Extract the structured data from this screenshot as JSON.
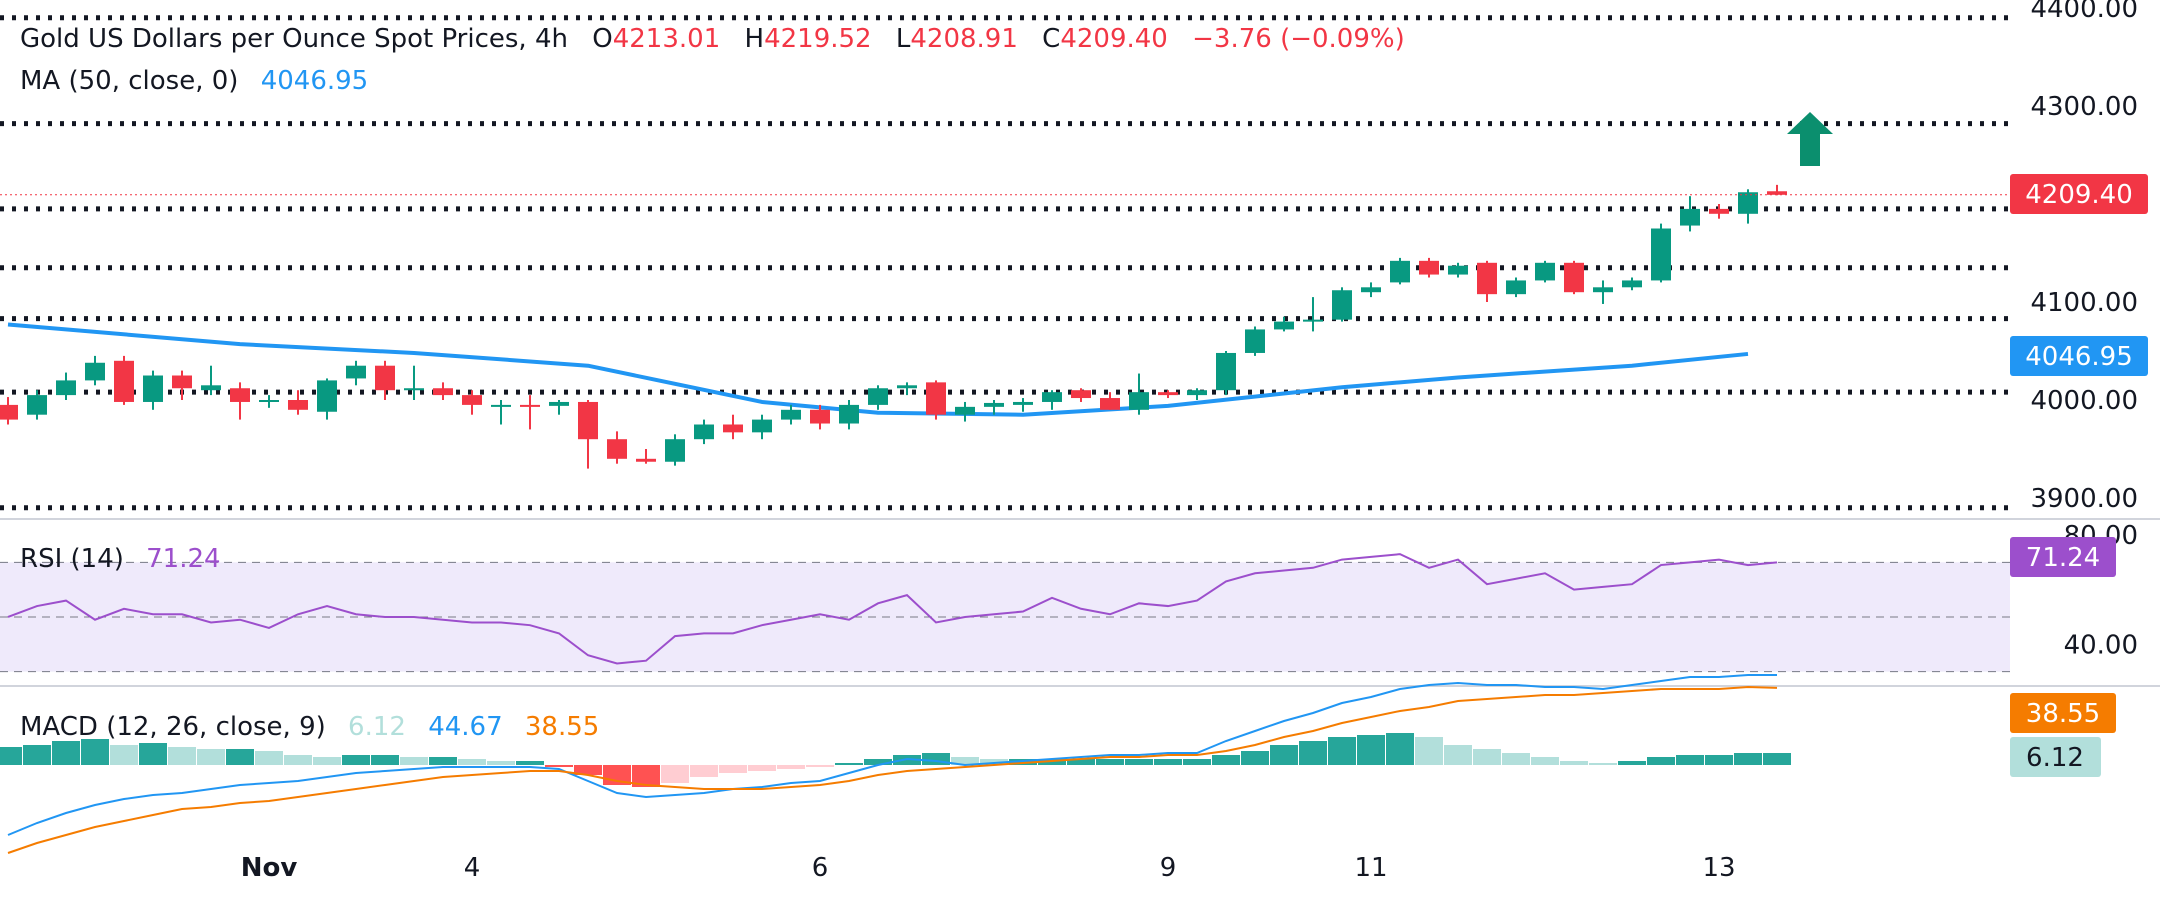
{
  "header": {
    "title": "Gold US Dollars per Ounce Spot Prices, 4h",
    "o_label": "O",
    "o_value": "4213.01",
    "h_label": "H",
    "h_value": "4219.52",
    "l_label": "L",
    "l_value": "4208.91",
    "c_label": "C",
    "c_value": "4209.40",
    "change": "−3.76 (−0.09%)",
    "ma_label": "MA (50, close, 0)",
    "ma_value": "4046.95",
    "rsi_label": "RSI (14)",
    "rsi_value": "71.24",
    "macd_label": "MACD (12, 26, close, 9)",
    "macd_hist_value": "6.12",
    "macd_line_value": "44.67",
    "macd_signal_value": "38.55"
  },
  "price_badges": {
    "last": "4209.40",
    "ma": "4046.95",
    "rsi": "71.24",
    "macd_signal": "38.55",
    "macd_hist": "6.12"
  },
  "colors": {
    "up": "#089981",
    "down": "#f23645",
    "ma": "#2196f3",
    "rsi": "#9c4fcc",
    "rsi_band": "#efeafb",
    "macd": "#2196f3",
    "signal": "#f57c00",
    "hist_up_strong": "#26a69a",
    "hist_up_weak": "#b2dfdb",
    "hist_down_strong": "#ff5252",
    "hist_down_weak": "#ffcdd2",
    "arrow": "#0b8f6e"
  },
  "chart_data": [
    {
      "type": "candlestick",
      "title": "Gold US Dollars per Ounce Spot Prices, 4h",
      "ylim": [
        3880,
        4420
      ],
      "y_ticks": [
        "4400.00",
        "4300.00",
        "4100.00",
        "4000.00",
        "3900.00"
      ],
      "x_ticks": [
        {
          "label": "Nov",
          "index": 9
        },
        {
          "label": "4",
          "index": 16
        },
        {
          "label": "6",
          "index": 28
        },
        {
          "label": "9",
          "index": 40
        },
        {
          "label": "11",
          "index": 47
        },
        {
          "label": "13",
          "index": 59
        }
      ],
      "horizontal_levels": [
        4390,
        4282,
        4195,
        4135,
        4083,
        4008,
        3890
      ],
      "candles": [
        [
          3995,
          4003,
          3975,
          3980
        ],
        [
          3985,
          4010,
          3980,
          4005
        ],
        [
          4005,
          4028,
          4000,
          4020
        ],
        [
          4020,
          4045,
          4015,
          4038
        ],
        [
          4040,
          4045,
          3995,
          3998
        ],
        [
          3998,
          4030,
          3990,
          4025
        ],
        [
          4025,
          4030,
          4000,
          4012
        ],
        [
          4010,
          4035,
          4005,
          4015
        ],
        [
          4012,
          4018,
          3980,
          3998
        ],
        [
          3998,
          4005,
          3992,
          4000
        ],
        [
          4000,
          4010,
          3985,
          3990
        ],
        [
          3988,
          4022,
          3980,
          4020
        ],
        [
          4022,
          4040,
          4015,
          4035
        ],
        [
          4035,
          4040,
          4000,
          4010
        ],
        [
          4010,
          4035,
          4000,
          4012
        ],
        [
          4012,
          4018,
          4000,
          4005
        ],
        [
          4005,
          4010,
          3985,
          3995
        ],
        [
          3995,
          4000,
          3975,
          3995
        ],
        [
          3995,
          4005,
          3970,
          3994
        ],
        [
          3994,
          4000,
          3985,
          3998
        ],
        [
          3998,
          4000,
          3930,
          3960
        ],
        [
          3960,
          3968,
          3935,
          3940
        ],
        [
          3940,
          3950,
          3935,
          3937
        ],
        [
          3937,
          3965,
          3933,
          3960
        ],
        [
          3960,
          3980,
          3955,
          3975
        ],
        [
          3975,
          3985,
          3960,
          3967
        ],
        [
          3967,
          3985,
          3960,
          3980
        ],
        [
          3980,
          3995,
          3975,
          3990
        ],
        [
          3990,
          3995,
          3970,
          3976
        ],
        [
          3976,
          4000,
          3970,
          3995
        ],
        [
          3995,
          4015,
          3990,
          4012
        ],
        [
          4012,
          4018,
          4005,
          4015
        ],
        [
          4018,
          4020,
          3980,
          3985
        ],
        [
          3985,
          3998,
          3978,
          3993
        ],
        [
          3993,
          4000,
          3985,
          3997
        ],
        [
          3995,
          4002,
          3988,
          3998
        ],
        [
          3998,
          4010,
          3990,
          4008
        ],
        [
          4010,
          4012,
          3998,
          4002
        ],
        [
          4002,
          4008,
          3990,
          3990
        ],
        [
          3990,
          4027,
          3985,
          4008
        ],
        [
          4008,
          4010,
          4002,
          4005
        ],
        [
          4005,
          4012,
          4000,
          4010
        ],
        [
          4010,
          4050,
          4005,
          4048
        ],
        [
          4048,
          4075,
          4045,
          4072
        ],
        [
          4072,
          4085,
          4070,
          4080
        ],
        [
          4080,
          4105,
          4070,
          4082
        ],
        [
          4082,
          4115,
          4080,
          4112
        ],
        [
          4110,
          4120,
          4105,
          4115
        ],
        [
          4120,
          4145,
          4118,
          4142
        ],
        [
          4142,
          4145,
          4125,
          4128
        ],
        [
          4128,
          4140,
          4125,
          4137
        ],
        [
          4140,
          4142,
          4100,
          4108
        ],
        [
          4108,
          4125,
          4105,
          4122
        ],
        [
          4122,
          4142,
          4120,
          4140
        ],
        [
          4140,
          4142,
          4108,
          4110
        ],
        [
          4110,
          4122,
          4098,
          4115
        ],
        [
          4115,
          4125,
          4112,
          4122
        ],
        [
          4122,
          4180,
          4120,
          4175
        ],
        [
          4178,
          4208,
          4172,
          4195
        ],
        [
          4195,
          4200,
          4185,
          4190
        ],
        [
          4190,
          4215,
          4180,
          4212
        ],
        [
          4213.01,
          4219.52,
          4208.91,
          4209.4
        ]
      ],
      "ma_50": [
        [
          0,
          4077
        ],
        [
          8,
          4057
        ],
        [
          14,
          4048
        ],
        [
          20,
          4035
        ],
        [
          26,
          3998
        ],
        [
          30,
          3987
        ],
        [
          35,
          3985
        ],
        [
          40,
          3994
        ],
        [
          46,
          4013
        ],
        [
          50,
          4023
        ],
        [
          56,
          4035
        ],
        [
          60,
          4047
        ]
      ]
    },
    {
      "type": "line",
      "title": "RSI (14)",
      "ylim": [
        20,
        80
      ],
      "y_ticks": [
        "80.00",
        "40.00"
      ],
      "levels": [
        70,
        50,
        30
      ],
      "values": [
        50,
        54,
        56,
        49,
        53,
        51,
        51,
        48,
        49,
        46,
        51,
        54,
        51,
        50,
        50,
        49,
        48,
        48,
        47,
        44,
        36,
        33,
        34,
        43,
        44,
        44,
        47,
        49,
        51,
        49,
        55,
        58,
        48,
        50,
        51,
        52,
        57,
        53,
        51,
        55,
        54,
        56,
        63,
        66,
        67,
        68,
        71,
        72,
        73,
        68,
        71,
        62,
        64,
        66,
        60,
        61,
        62,
        69,
        70,
        71,
        69,
        70
      ]
    },
    {
      "type": "bar+line",
      "title": "MACD (12, 26, close, 9)",
      "ylim": [
        -60,
        60
      ],
      "y_ticks": [
        "38.55",
        "6.12"
      ],
      "histogram": [
        9,
        10,
        12,
        13,
        10,
        11,
        9,
        8,
        8,
        7,
        5,
        4,
        5,
        5,
        4,
        4,
        3,
        2,
        2,
        -1,
        -5,
        -10,
        -11,
        -9,
        -6,
        -4,
        -3,
        -2,
        -1,
        1,
        3,
        5,
        6,
        4,
        3,
        3,
        3,
        3,
        3,
        3,
        3,
        3,
        5,
        7,
        10,
        12,
        14,
        15,
        16,
        14,
        10,
        8,
        6,
        4,
        2,
        1,
        2,
        4,
        5,
        5,
        6,
        6
      ],
      "macd": [
        -35,
        -29,
        -24,
        -20,
        -17,
        -15,
        -14,
        -12,
        -10,
        -9,
        -8,
        -6,
        -4,
        -3,
        -2,
        -1,
        -1,
        -1,
        -1,
        -2,
        -8,
        -14,
        -16,
        -15,
        -14,
        -12,
        -11,
        -9,
        -8,
        -4,
        0,
        3,
        2,
        0,
        1,
        2,
        3,
        4,
        5,
        5,
        6,
        6,
        12,
        17,
        22,
        26,
        31,
        34,
        38,
        40,
        41,
        40,
        40,
        39,
        39,
        38,
        40,
        42,
        44,
        44,
        45,
        45
      ],
      "signal": [
        -44,
        -39,
        -35,
        -31,
        -28,
        -25,
        -22,
        -21,
        -19,
        -18,
        -16,
        -14,
        -12,
        -10,
        -8,
        -6,
        -5,
        -4,
        -3,
        -3,
        -5,
        -8,
        -10,
        -11,
        -12,
        -12,
        -12,
        -11,
        -10,
        -8,
        -5,
        -3,
        -2,
        -1,
        0,
        1,
        2,
        3,
        4,
        4,
        5,
        5,
        7,
        10,
        14,
        17,
        21,
        24,
        27,
        29,
        32,
        33,
        34,
        35,
        35,
        36,
        37,
        38,
        38,
        38,
        39,
        38.55
      ]
    }
  ]
}
